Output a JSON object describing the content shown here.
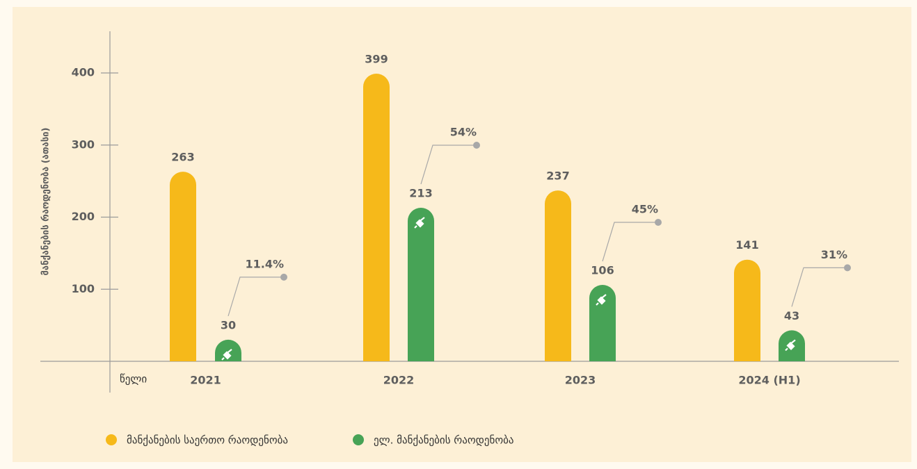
{
  "chart_data": {
    "type": "bar",
    "y_axis_label": "მანქანების რაოდენობა (ათასი)",
    "x_axis_label": "წელი",
    "categories": [
      "2021",
      "2022",
      "2023",
      "2024 (H1)"
    ],
    "series": [
      {
        "name": "მანქანების საერთო რაოდენობა",
        "color": "#f6b91a",
        "values": [
          263,
          399,
          237,
          141
        ]
      },
      {
        "name": "ელ. მანქანების რაოდენობა",
        "color": "#47a356",
        "values": [
          30,
          213,
          106,
          43
        ]
      }
    ],
    "share_labels": [
      "11.4%",
      "54%",
      "45%",
      "31%"
    ],
    "ylim": [
      0,
      400
    ],
    "yticks": [
      100,
      200,
      300,
      400
    ]
  }
}
